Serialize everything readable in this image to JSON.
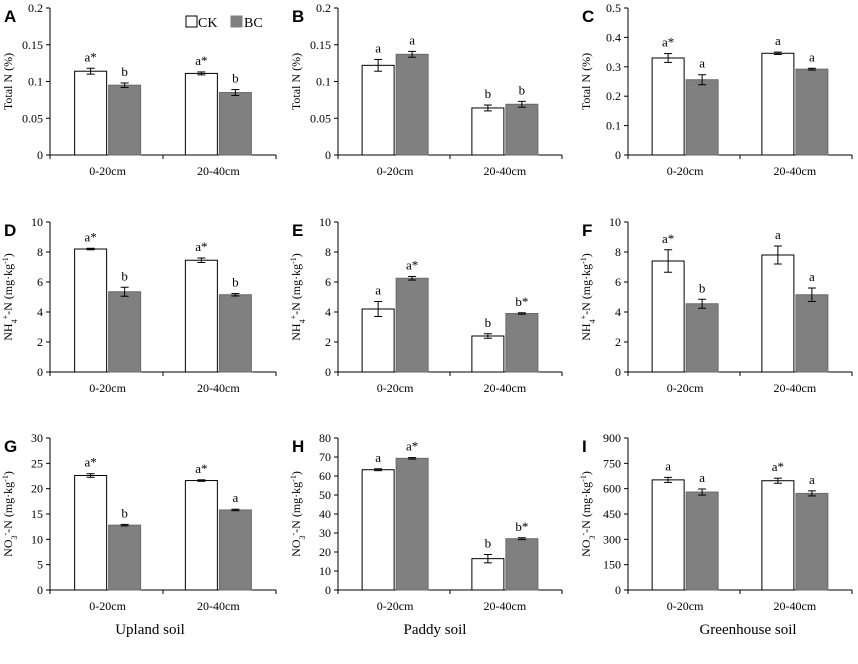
{
  "legend": {
    "ck": "CK",
    "bc": "BC"
  },
  "soil_labels": [
    "Upland soil",
    "Paddy soil",
    "Greenhouse soil"
  ],
  "colors": {
    "ck_fill": "#ffffff",
    "bc_fill": "#808080",
    "line": "#000000"
  },
  "chart_data": [
    {
      "panel": "A",
      "type": "bar",
      "ylabel": "Total N (%)",
      "ylabel_html": "Total N (%)",
      "categories": [
        "0-20cm",
        "20-40cm"
      ],
      "ylim": [
        0,
        0.2
      ],
      "yticks": [
        0,
        0.05,
        0.1,
        0.15,
        0.2
      ],
      "ytick_labels": [
        "0",
        "0.05",
        "0.1",
        "0.15",
        "0.2"
      ],
      "series": [
        {
          "name": "CK",
          "values": [
            0.114,
            0.111
          ],
          "errors": [
            0.004,
            0.002
          ],
          "labels": [
            "a*",
            "a*"
          ]
        },
        {
          "name": "BC",
          "values": [
            0.095,
            0.085
          ],
          "errors": [
            0.003,
            0.004
          ],
          "labels": [
            "b",
            "b"
          ]
        }
      ]
    },
    {
      "panel": "B",
      "type": "bar",
      "ylabel": "Total N (%)",
      "categories": [
        "0-20cm",
        "20-40cm"
      ],
      "ylim": [
        0,
        0.2
      ],
      "yticks": [
        0,
        0.05,
        0.1,
        0.15,
        0.2
      ],
      "ytick_labels": [
        "0",
        "0.05",
        "0.1",
        "0.15",
        "0.2"
      ],
      "series": [
        {
          "name": "CK",
          "values": [
            0.122,
            0.064
          ],
          "errors": [
            0.008,
            0.004
          ],
          "labels": [
            "a",
            "b"
          ]
        },
        {
          "name": "BC",
          "values": [
            0.137,
            0.069
          ],
          "errors": [
            0.004,
            0.004
          ],
          "labels": [
            "a",
            "b"
          ]
        }
      ]
    },
    {
      "panel": "C",
      "type": "bar",
      "ylabel": "Total N (%)",
      "categories": [
        "0-20cm",
        "20-40cm"
      ],
      "ylim": [
        0,
        0.5
      ],
      "yticks": [
        0,
        0.1,
        0.2,
        0.3,
        0.4,
        0.5
      ],
      "ytick_labels": [
        "0",
        "0.1",
        "0.2",
        "0.3",
        "0.4",
        "0.5"
      ],
      "series": [
        {
          "name": "CK",
          "values": [
            0.33,
            0.346
          ],
          "errors": [
            0.015,
            0.004
          ],
          "labels": [
            "a*",
            "a"
          ]
        },
        {
          "name": "BC",
          "values": [
            0.256,
            0.292
          ],
          "errors": [
            0.017,
            0.003
          ],
          "labels": [
            "a",
            "a"
          ]
        }
      ]
    },
    {
      "panel": "D",
      "type": "bar",
      "ylabel": "NH4+-N (mg·kg-1)",
      "categories": [
        "0-20cm",
        "20-40cm"
      ],
      "ylim": [
        0,
        10
      ],
      "yticks": [
        0,
        2,
        4,
        6,
        8,
        10
      ],
      "ytick_labels": [
        "0",
        "2",
        "4",
        "6",
        "8",
        "10"
      ],
      "series": [
        {
          "name": "CK",
          "values": [
            8.2,
            7.45
          ],
          "errors": [
            0.05,
            0.15
          ],
          "labels": [
            "a*",
            "a*"
          ]
        },
        {
          "name": "BC",
          "values": [
            5.35,
            5.15
          ],
          "errors": [
            0.3,
            0.08
          ],
          "labels": [
            "b",
            "b"
          ]
        }
      ]
    },
    {
      "panel": "E",
      "type": "bar",
      "ylabel": "NH4+-N (mg·kg-1)",
      "categories": [
        "0-20cm",
        "20-40cm"
      ],
      "ylim": [
        0,
        10
      ],
      "yticks": [
        0,
        2,
        4,
        6,
        8,
        10
      ],
      "ytick_labels": [
        "0",
        "2",
        "4",
        "6",
        "8",
        "10"
      ],
      "series": [
        {
          "name": "CK",
          "values": [
            4.2,
            2.4
          ],
          "errors": [
            0.5,
            0.15
          ],
          "labels": [
            "a",
            "b"
          ]
        },
        {
          "name": "BC",
          "values": [
            6.25,
            3.9
          ],
          "errors": [
            0.12,
            0.05
          ],
          "labels": [
            "a*",
            "b*"
          ]
        }
      ]
    },
    {
      "panel": "F",
      "type": "bar",
      "ylabel": "NH4+-N (mg·kg-1)",
      "categories": [
        "0-20cm",
        "20-40cm"
      ],
      "ylim": [
        0,
        10
      ],
      "yticks": [
        0,
        2,
        4,
        6,
        8,
        10
      ],
      "ytick_labels": [
        "0",
        "2",
        "4",
        "6",
        "8",
        "10"
      ],
      "series": [
        {
          "name": "CK",
          "values": [
            7.4,
            7.8
          ],
          "errors": [
            0.75,
            0.6
          ],
          "labels": [
            "a*",
            "a"
          ]
        },
        {
          "name": "BC",
          "values": [
            4.55,
            5.15
          ],
          "errors": [
            0.3,
            0.45
          ],
          "labels": [
            "b",
            "a"
          ]
        }
      ]
    },
    {
      "panel": "G",
      "type": "bar",
      "ylabel": "NO3--N (mg·kg-1)",
      "categories": [
        "0-20cm",
        "20-40cm"
      ],
      "ylim": [
        0,
        30
      ],
      "yticks": [
        0,
        5,
        10,
        15,
        20,
        25,
        30
      ],
      "ytick_labels": [
        "0",
        "5",
        "10",
        "15",
        "20",
        "25",
        "30"
      ],
      "series": [
        {
          "name": "CK",
          "values": [
            22.6,
            21.6
          ],
          "errors": [
            0.35,
            0.15
          ],
          "labels": [
            "a*",
            "a*"
          ]
        },
        {
          "name": "BC",
          "values": [
            12.8,
            15.8
          ],
          "errors": [
            0.15,
            0.15
          ],
          "labels": [
            "b",
            "a"
          ]
        }
      ]
    },
    {
      "panel": "H",
      "type": "bar",
      "ylabel": "NO3--N (mg·kg-1)",
      "categories": [
        "0-20cm",
        "20-40cm"
      ],
      "ylim": [
        0,
        80
      ],
      "yticks": [
        0,
        10,
        20,
        30,
        40,
        50,
        60,
        70,
        80
      ],
      "ytick_labels": [
        "0",
        "10",
        "20",
        "30",
        "40",
        "50",
        "60",
        "70",
        "80"
      ],
      "series": [
        {
          "name": "CK",
          "values": [
            63.3,
            16.5
          ],
          "errors": [
            0.5,
            2.2
          ],
          "labels": [
            "a",
            "b"
          ]
        },
        {
          "name": "BC",
          "values": [
            69.3,
            27.0
          ],
          "errors": [
            0.4,
            0.5
          ],
          "labels": [
            "a*",
            "b*"
          ]
        }
      ]
    },
    {
      "panel": "I",
      "type": "bar",
      "ylabel": "NO3--N (mg·kg-1)",
      "categories": [
        "0-20cm",
        "20-40cm"
      ],
      "ylim": [
        0,
        900
      ],
      "yticks": [
        0,
        150,
        300,
        450,
        600,
        750,
        900
      ],
      "ytick_labels": [
        "0",
        "150",
        "300",
        "450",
        "600",
        "750",
        "900"
      ],
      "series": [
        {
          "name": "CK",
          "values": [
            652,
            647
          ],
          "errors": [
            15,
            15
          ],
          "labels": [
            "a",
            "a*"
          ]
        },
        {
          "name": "BC",
          "values": [
            580,
            572
          ],
          "errors": [
            18,
            15
          ],
          "labels": [
            "a",
            "a"
          ]
        }
      ]
    }
  ]
}
